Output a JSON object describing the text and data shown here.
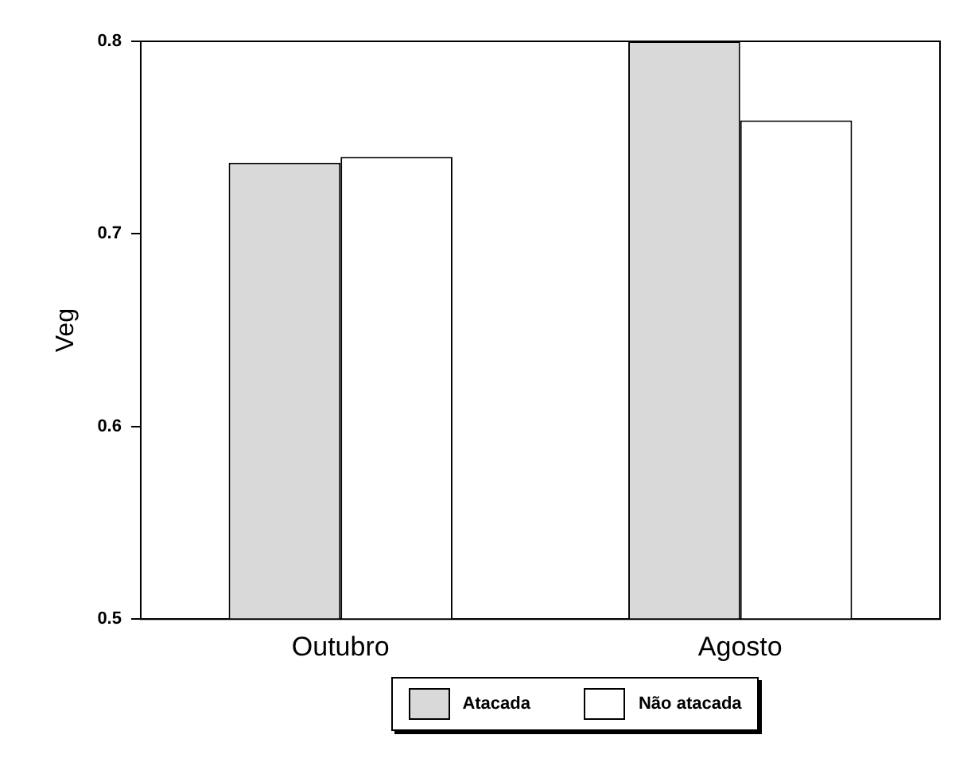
{
  "chart_data": {
    "type": "bar",
    "ylabel": "Veg",
    "categories": [
      "Outubro",
      "Agosto"
    ],
    "series": [
      {
        "name": "Atacada",
        "color": "#d9d9d9",
        "values": [
          0.737,
          0.8
        ]
      },
      {
        "name": "Não atacada",
        "color": "#ffffff",
        "values": [
          0.74,
          0.759
        ]
      }
    ],
    "ylim": [
      0.5,
      0.8
    ],
    "yticks": [
      0.5,
      0.6,
      0.7,
      0.8
    ],
    "grid": false,
    "legend": "bottom"
  }
}
